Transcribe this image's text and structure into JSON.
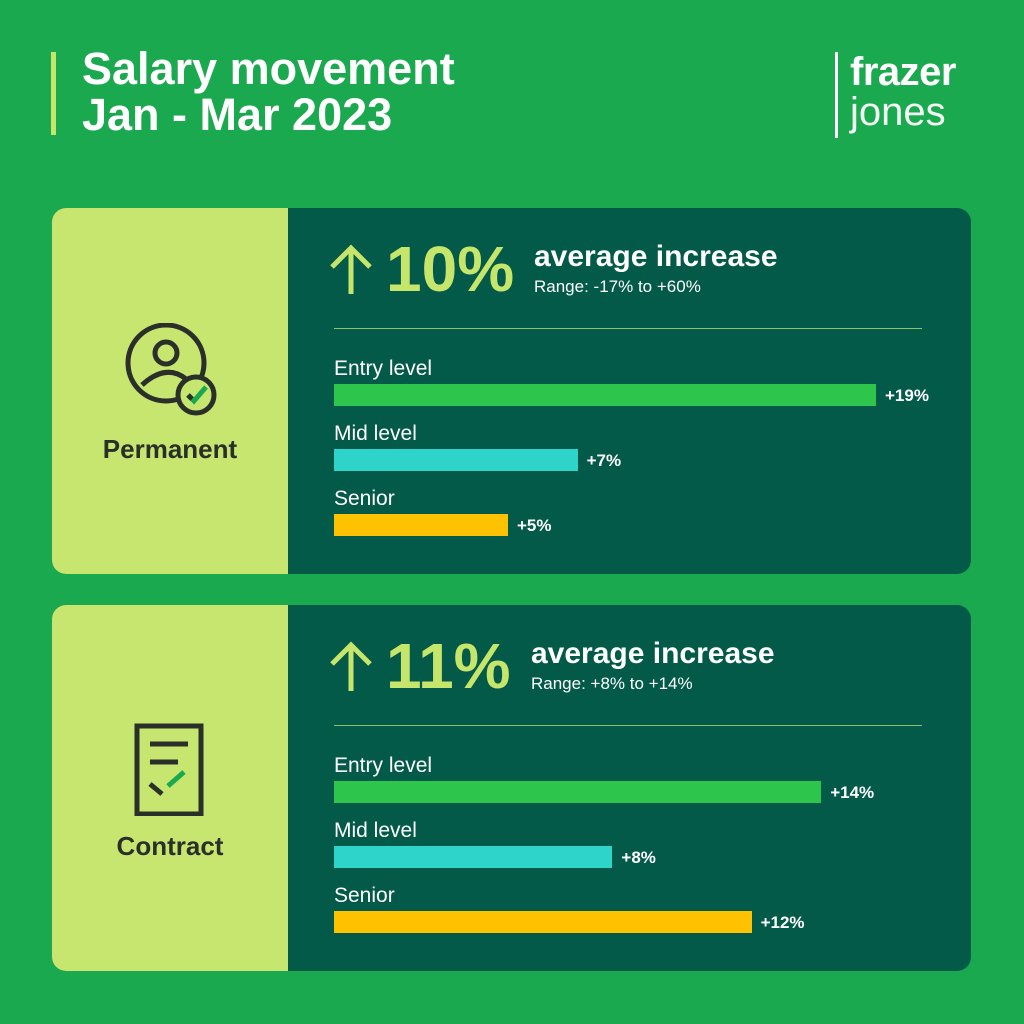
{
  "header": {
    "title_line1": "Salary movement",
    "title_line2": "Jan - Mar 2023"
  },
  "logo": {
    "line1": "frazer",
    "line2": "jones"
  },
  "colors": {
    "background": "#1ba94f",
    "panel": "#035a48",
    "side": "#c7e66f",
    "entry": "#2ec54d",
    "mid": "#2ed3c9",
    "senior": "#ffc200"
  },
  "chart_data": [
    {
      "type": "bar",
      "category": "Permanent",
      "icon": "person-check-icon",
      "headline": "10%",
      "headline_label": "average increase",
      "range": "Range: -17% to +60%",
      "categories": [
        "Entry level",
        "Mid level",
        "Senior"
      ],
      "values": [
        19,
        7,
        5
      ],
      "labels": [
        "+19%",
        "+7%",
        "+5%"
      ]
    },
    {
      "type": "bar",
      "category": "Contract",
      "icon": "contract-document-icon",
      "headline": "11%",
      "headline_label": "average increase",
      "range": "Range: +8% to +14%",
      "categories": [
        "Entry level",
        "Mid level",
        "Senior"
      ],
      "values": [
        14,
        8,
        12
      ],
      "labels": [
        "+14%",
        "+8%",
        "+12%"
      ]
    }
  ]
}
